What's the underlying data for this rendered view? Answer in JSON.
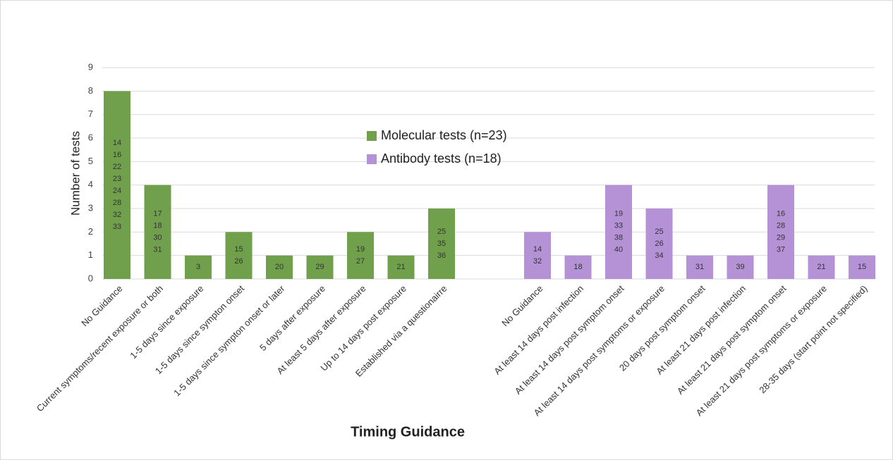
{
  "chart_data": {
    "type": "bar",
    "x_label": "Timing Guidance",
    "y_label": "Number of tests",
    "ylim": [
      0,
      9
    ],
    "yticks": [
      0,
      1,
      2,
      3,
      4,
      5,
      6,
      7,
      8,
      9
    ],
    "grid": true,
    "legend": "center",
    "categories": [
      "No Guidance",
      "Current symptoms/recent exposure or both",
      "1-5 days since exposure",
      "1-5 days since sympton onset",
      "1-5 days since sympton onset or later",
      "5 days after exposure",
      "At least 5 days after exposure",
      "Up to 14 days post exposure",
      "Established via a questionairre",
      null,
      "No Guidance",
      "At least 14 days post infection",
      "At least 14 days post symptom onset",
      "At least 14 days post symptoms or exposure",
      "20 days post symptom onset",
      "At least 21 days post infection",
      "At least 21 days post symptom onset",
      "At least 21 days post symptoms or exposure",
      "28-35 days (start point not specified)"
    ],
    "series": [
      {
        "name": "Molecular tests (n=23)",
        "color": "#70a04c",
        "values": [
          8,
          4,
          1,
          2,
          1,
          1,
          2,
          1,
          3,
          null,
          null,
          null,
          null,
          null,
          null,
          null,
          null,
          null,
          null
        ],
        "bar_labels": [
          [
            "14",
            "16",
            "22",
            "23",
            "24",
            "28",
            "32",
            "33"
          ],
          [
            "17",
            "18",
            "30",
            "31"
          ],
          [
            "3"
          ],
          [
            "15",
            "26"
          ],
          [
            "20"
          ],
          [
            "29"
          ],
          [
            "19",
            "27"
          ],
          [
            "21"
          ],
          [
            "25",
            "35",
            "36"
          ],
          null,
          null,
          null,
          null,
          null,
          null,
          null,
          null,
          null,
          null
        ]
      },
      {
        "name": "Antibody tests (n=18)",
        "color": "#b592d6",
        "values": [
          null,
          null,
          null,
          null,
          null,
          null,
          null,
          null,
          null,
          null,
          2,
          1,
          4,
          3,
          1,
          1,
          4,
          1,
          1
        ],
        "bar_labels": [
          null,
          null,
          null,
          null,
          null,
          null,
          null,
          null,
          null,
          null,
          [
            "14",
            "32"
          ],
          [
            "18"
          ],
          [
            "19",
            "33",
            "38",
            "40"
          ],
          [
            "25",
            "26",
            "34"
          ],
          [
            "31"
          ],
          [
            "39"
          ],
          [
            "16",
            "28",
            "29",
            "37"
          ],
          [
            "21"
          ],
          [
            "15"
          ]
        ]
      }
    ]
  }
}
